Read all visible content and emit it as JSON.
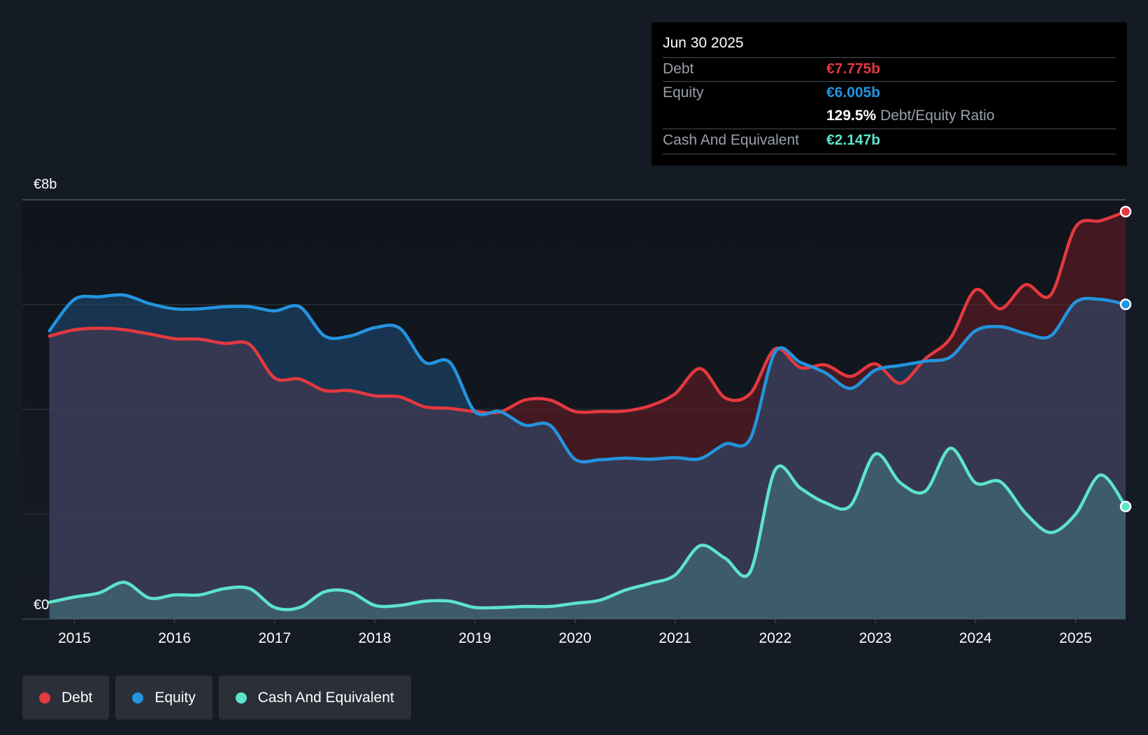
{
  "colors": {
    "background": "#151b24",
    "debt": "#e5383f",
    "equity": "#2394df",
    "cash": "#5de3cc",
    "grid": "#2c323b",
    "axis_text": "#ffffff"
  },
  "tooltip": {
    "date": "Jun 30 2025",
    "debt_label": "Debt",
    "debt_value": "€7.775b",
    "equity_label": "Equity",
    "equity_value": "€6.005b",
    "ratio_value": "129.5%",
    "ratio_label": "Debt/Equity Ratio",
    "cash_label": "Cash And Equivalent",
    "cash_value": "€2.147b"
  },
  "legend": {
    "debt_label": "Debt",
    "equity_label": "Equity",
    "cash_label": "Cash And Equivalent"
  },
  "chart_data": {
    "type": "area",
    "title": "",
    "xlabel": "",
    "ylabel": "",
    "ylim": [
      0,
      8
    ],
    "xlim": [
      2014.48,
      2025.5
    ],
    "y_tick_labels": [
      "€8b",
      "€0"
    ],
    "y_tick_values": [
      8,
      0
    ],
    "gridlines": [
      0,
      2,
      4,
      6,
      8
    ],
    "x_ticks": [
      2015,
      2016,
      2017,
      2018,
      2019,
      2020,
      2021,
      2022,
      2023,
      2024,
      2025
    ],
    "x_tick_labels": [
      "2015",
      "2016",
      "2017",
      "2018",
      "2019",
      "2020",
      "2021",
      "2022",
      "2023",
      "2024",
      "2025"
    ],
    "series": [
      {
        "name": "Debt",
        "color": "#e5383f",
        "x": [
          2014.75,
          2015.0,
          2015.25,
          2015.5,
          2015.75,
          2016.0,
          2016.25,
          2016.5,
          2016.75,
          2017.0,
          2017.25,
          2017.5,
          2017.75,
          2018.0,
          2018.25,
          2018.5,
          2018.75,
          2019.0,
          2019.25,
          2019.5,
          2019.75,
          2020.0,
          2020.25,
          2020.5,
          2020.75,
          2021.0,
          2021.25,
          2021.5,
          2021.75,
          2022.0,
          2022.25,
          2022.5,
          2022.75,
          2023.0,
          2023.25,
          2023.5,
          2023.75,
          2024.0,
          2024.25,
          2024.5,
          2024.75,
          2025.0,
          2025.25,
          2025.5
        ],
        "values": [
          5.4,
          5.52,
          5.55,
          5.52,
          5.44,
          5.35,
          5.34,
          5.26,
          5.24,
          4.6,
          4.58,
          4.36,
          4.36,
          4.26,
          4.24,
          4.05,
          4.02,
          3.96,
          3.95,
          4.18,
          4.18,
          3.96,
          3.96,
          3.97,
          4.07,
          4.3,
          4.78,
          4.22,
          4.3,
          5.16,
          4.8,
          4.85,
          4.63,
          4.87,
          4.5,
          4.97,
          5.36,
          6.28,
          5.92,
          6.38,
          6.18,
          7.48,
          7.6,
          7.775
        ]
      },
      {
        "name": "Equity",
        "color": "#2394df",
        "x": [
          2014.75,
          2015.0,
          2015.25,
          2015.5,
          2015.75,
          2016.0,
          2016.25,
          2016.5,
          2016.75,
          2017.0,
          2017.25,
          2017.5,
          2017.75,
          2018.0,
          2018.25,
          2018.5,
          2018.75,
          2019.0,
          2019.25,
          2019.5,
          2019.75,
          2020.0,
          2020.25,
          2020.5,
          2020.75,
          2021.0,
          2021.25,
          2021.5,
          2021.75,
          2022.0,
          2022.25,
          2022.5,
          2022.75,
          2023.0,
          2023.25,
          2023.5,
          2023.75,
          2024.0,
          2024.25,
          2024.5,
          2024.75,
          2025.0,
          2025.25,
          2025.5
        ],
        "values": [
          5.5,
          6.1,
          6.15,
          6.18,
          6.02,
          5.92,
          5.92,
          5.96,
          5.96,
          5.88,
          5.96,
          5.4,
          5.4,
          5.56,
          5.55,
          4.9,
          4.9,
          3.96,
          3.96,
          3.7,
          3.7,
          3.05,
          3.04,
          3.07,
          3.05,
          3.08,
          3.06,
          3.34,
          3.44,
          5.1,
          4.9,
          4.7,
          4.4,
          4.75,
          4.84,
          4.92,
          5.0,
          5.5,
          5.58,
          5.45,
          5.4,
          6.05,
          6.1,
          6.005
        ]
      },
      {
        "name": "Cash And Equivalent",
        "color": "#5de3cc",
        "x": [
          2014.75,
          2015.0,
          2015.25,
          2015.5,
          2015.75,
          2016.0,
          2016.25,
          2016.5,
          2016.75,
          2017.0,
          2017.25,
          2017.5,
          2017.75,
          2018.0,
          2018.25,
          2018.5,
          2018.75,
          2019.0,
          2019.25,
          2019.5,
          2019.75,
          2020.0,
          2020.25,
          2020.5,
          2020.75,
          2021.0,
          2021.25,
          2021.5,
          2021.75,
          2022.0,
          2022.25,
          2022.5,
          2022.75,
          2023.0,
          2023.25,
          2023.5,
          2023.75,
          2024.0,
          2024.25,
          2024.5,
          2024.75,
          2025.0,
          2025.25,
          2025.5
        ],
        "values": [
          0.32,
          0.42,
          0.5,
          0.7,
          0.4,
          0.46,
          0.46,
          0.58,
          0.58,
          0.22,
          0.22,
          0.52,
          0.52,
          0.26,
          0.26,
          0.34,
          0.34,
          0.22,
          0.22,
          0.24,
          0.24,
          0.3,
          0.36,
          0.55,
          0.68,
          0.84,
          1.4,
          1.16,
          0.9,
          2.85,
          2.5,
          2.22,
          2.16,
          3.15,
          2.6,
          2.44,
          3.26,
          2.6,
          2.62,
          2.02,
          1.65,
          2.0,
          2.75,
          2.147
        ]
      }
    ]
  }
}
